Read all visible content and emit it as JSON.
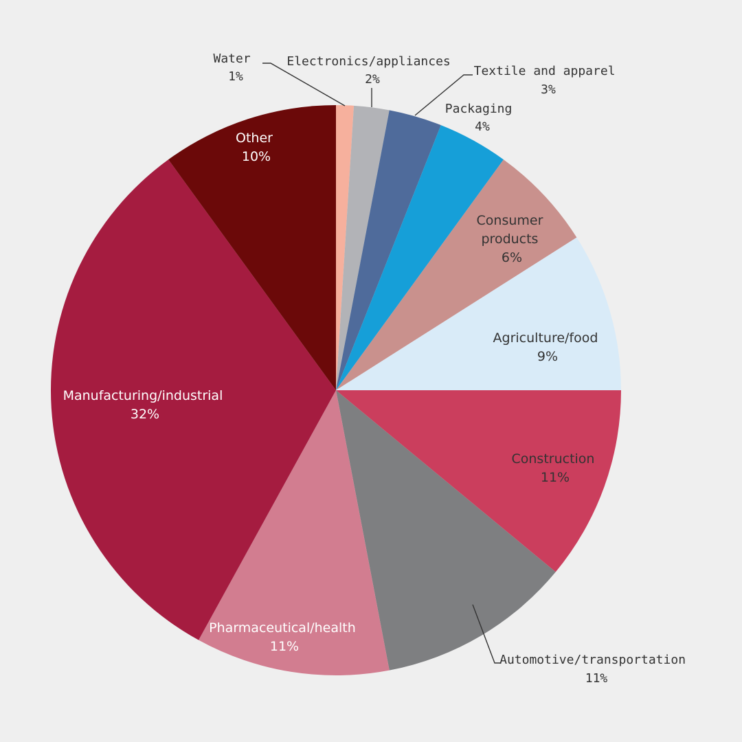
{
  "chart_data": {
    "type": "pie",
    "unit": "%",
    "slices": [
      {
        "label": "Water",
        "value": 1,
        "value_label": "1%",
        "color": "#f6b09d"
      },
      {
        "label": "Electronics/appliances",
        "value": 2,
        "value_label": "2%",
        "color": "#b2b3b7"
      },
      {
        "label": "Textile and apparel",
        "value": 3,
        "value_label": "3%",
        "color": "#4f6b9b"
      },
      {
        "label": "Packaging",
        "value": 4,
        "value_label": "4%",
        "color": "#169fd8"
      },
      {
        "label": "Consumer products",
        "value": 6,
        "value_label": "6%",
        "color": "#c9918d"
      },
      {
        "label": "Agriculture/food",
        "value": 9,
        "value_label": "9%",
        "color": "#d9ebf8"
      },
      {
        "label": "Construction",
        "value": 11,
        "value_label": "11%",
        "color": "#cb3e5d"
      },
      {
        "label": "Automotive/transportation",
        "value": 11,
        "value_label": "11%",
        "color": "#7e7f81"
      },
      {
        "label": "Pharmaceutical/health",
        "value": 11,
        "value_label": "11%",
        "color": "#d27d90"
      },
      {
        "label": "Manufacturing/industrial",
        "value": 32,
        "value_label": "32%",
        "color": "#a51c40"
      },
      {
        "label": "Other",
        "value": 10,
        "value_label": "10%",
        "color": "#6b0909"
      }
    ],
    "start": "12 o'clock",
    "direction": "clockwise",
    "legend": "none (labels on and beside slices)"
  }
}
